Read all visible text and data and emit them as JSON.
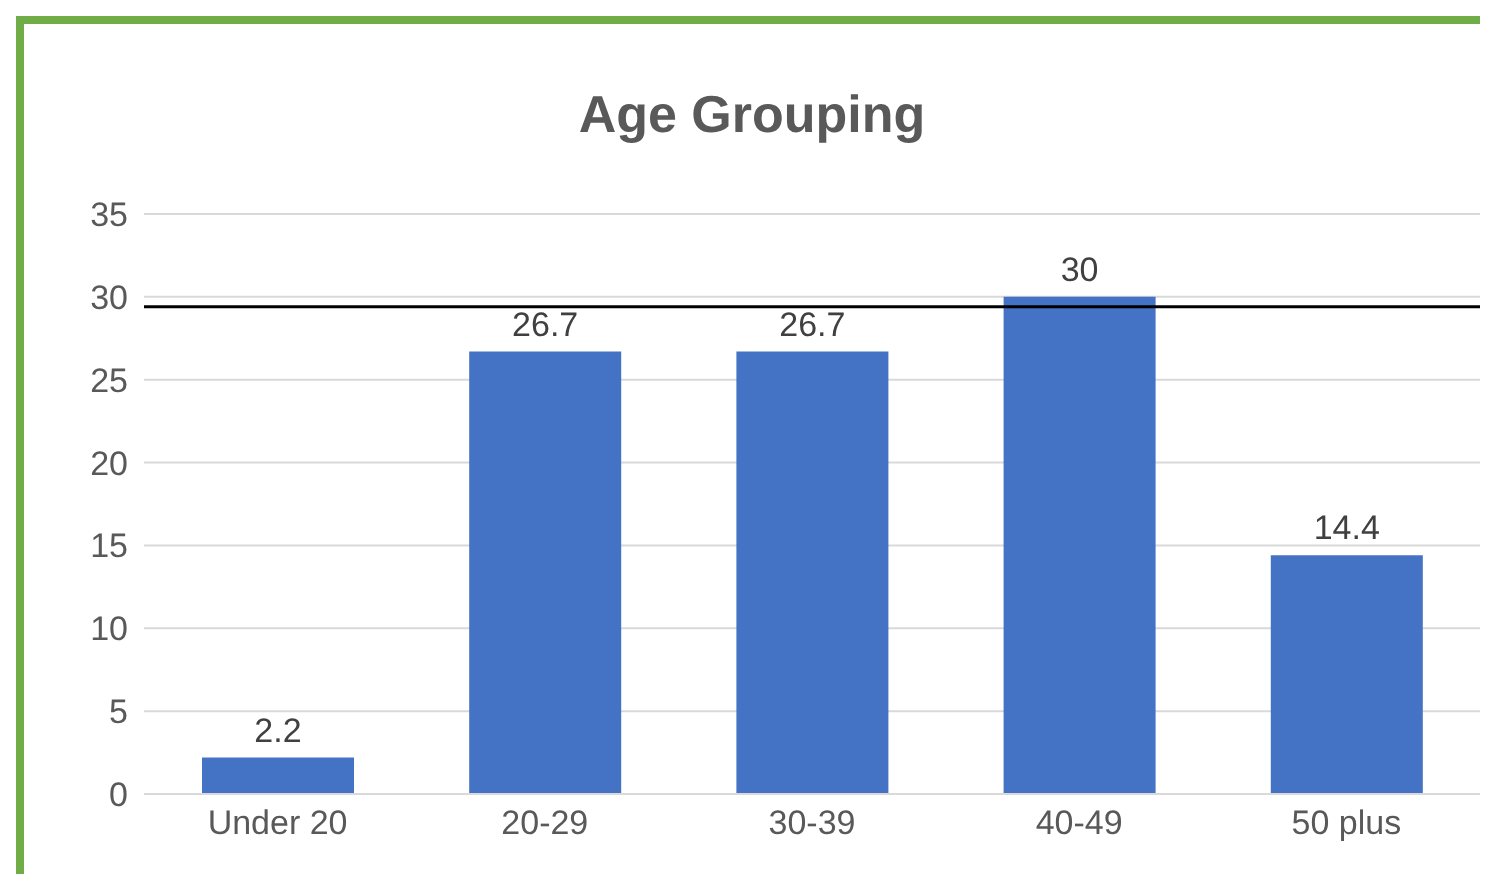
{
  "chart_data": {
    "type": "bar",
    "title": "Age Grouping",
    "categories": [
      "Under 20",
      "20-29",
      "30-39",
      "40-49",
      "50 plus"
    ],
    "values": [
      2.2,
      26.7,
      26.7,
      30,
      14.4
    ],
    "color": "#4472c4",
    "ylim": [
      0,
      35
    ],
    "yticks": [
      0,
      5,
      10,
      15,
      20,
      25,
      30,
      35
    ],
    "grid": "y",
    "data_labels": true,
    "ref_lines": [
      {
        "axis": "y",
        "value": 29.4,
        "color": "#000000"
      }
    ]
  }
}
